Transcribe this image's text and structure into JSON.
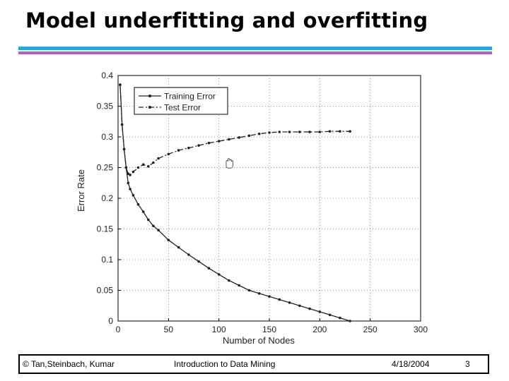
{
  "slide": {
    "title": "Model underfitting and overfitting"
  },
  "footer": {
    "copyright": "© Tan,Steinbach, Kumar",
    "course": "Introduction to Data Mining",
    "date": "4/18/2004",
    "page": "3"
  },
  "chart_data": {
    "type": "line",
    "xlabel": "Number of Nodes",
    "ylabel": "Error Rate",
    "xlim": [
      0,
      300
    ],
    "ylim": [
      0,
      0.4
    ],
    "xticks": [
      "0",
      "50",
      "100",
      "150",
      "200",
      "250",
      "300"
    ],
    "yticks": [
      "0",
      "0.05",
      "0.1",
      "0.15",
      "0.2",
      "0.25",
      "0.3",
      "0.35",
      "0.4"
    ],
    "grid": "dotted",
    "legend_position": "top-left",
    "series": [
      {
        "name": "Training Error",
        "style": "solid",
        "x": [
          2,
          4,
          6,
          8,
          10,
          12,
          15,
          20,
          25,
          30,
          35,
          40,
          50,
          60,
          70,
          80,
          90,
          100,
          110,
          120,
          130,
          140,
          150,
          160,
          170,
          180,
          190,
          200,
          210,
          220,
          230
        ],
        "y": [
          0.385,
          0.32,
          0.28,
          0.25,
          0.225,
          0.215,
          0.205,
          0.19,
          0.178,
          0.165,
          0.155,
          0.148,
          0.132,
          0.12,
          0.108,
          0.097,
          0.086,
          0.076,
          0.066,
          0.058,
          0.05,
          0.045,
          0.04,
          0.035,
          0.03,
          0.025,
          0.02,
          0.015,
          0.01,
          0.005,
          0.0
        ]
      },
      {
        "name": "Test Error",
        "style": "dash-dot",
        "x": [
          2,
          4,
          6,
          8,
          10,
          12,
          15,
          20,
          25,
          30,
          35,
          40,
          50,
          60,
          70,
          80,
          90,
          100,
          110,
          120,
          130,
          140,
          150,
          160,
          170,
          180,
          190,
          200,
          210,
          220,
          230
        ],
        "y": [
          0.385,
          0.32,
          0.28,
          0.25,
          0.24,
          0.238,
          0.243,
          0.25,
          0.255,
          0.252,
          0.258,
          0.265,
          0.272,
          0.278,
          0.282,
          0.286,
          0.29,
          0.293,
          0.296,
          0.299,
          0.302,
          0.305,
          0.307,
          0.308,
          0.308,
          0.308,
          0.308,
          0.308,
          0.309,
          0.309,
          0.309
        ]
      }
    ]
  }
}
